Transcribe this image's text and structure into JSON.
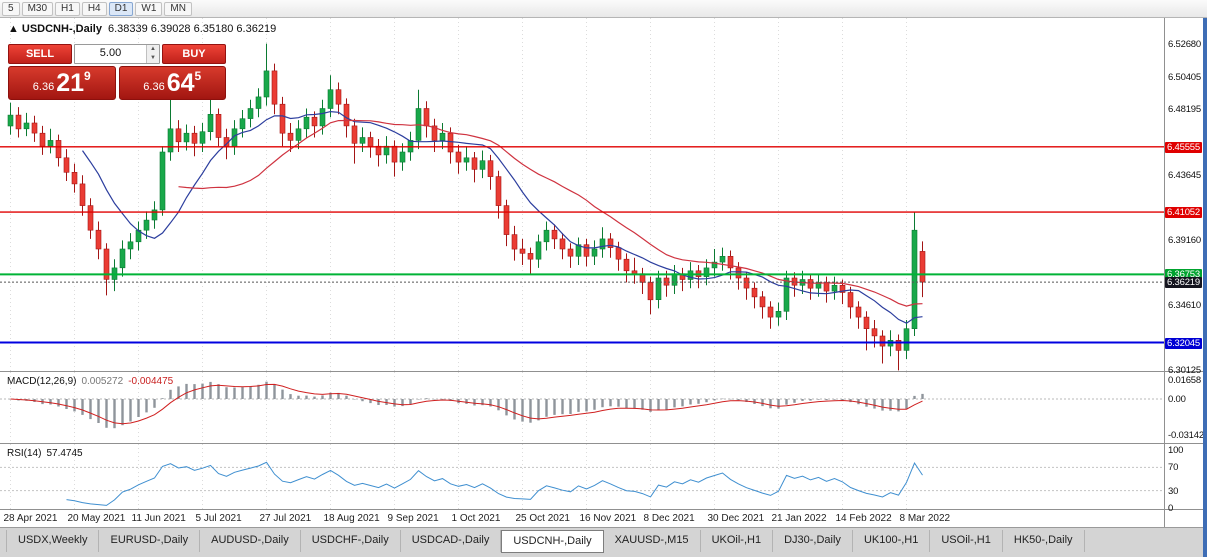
{
  "toolbar": {
    "timeframes": [
      {
        "label": "5"
      },
      {
        "label": "M30"
      },
      {
        "label": "H1"
      },
      {
        "label": "H4"
      },
      {
        "label": "D1",
        "active": true
      },
      {
        "label": "W1"
      },
      {
        "label": "MN"
      }
    ]
  },
  "chart_header": {
    "marker": "▲",
    "symbol": "USDCNH-,Daily",
    "ohlc": "6.38339 6.39028 6.35180 6.36219"
  },
  "trade_panel": {
    "sell_label": "SELL",
    "buy_label": "BUY",
    "volume": "5.00",
    "sell_price": {
      "prefix": "6.36",
      "big": "21",
      "sup": "9"
    },
    "buy_price": {
      "prefix": "6.36",
      "big": "64",
      "sup": "5"
    }
  },
  "macd": {
    "name": "MACD(12,26,9)",
    "value": "0.005272",
    "signal_value": "-0.004475",
    "axis_labels": [
      {
        "text": "0.01658",
        "value": 0.01658
      },
      {
        "text": "0.00",
        "value": 0
      },
      {
        "text": "-0.03142",
        "value": -0.03142
      }
    ]
  },
  "rsi": {
    "name": "RSI(14)",
    "value": "57.4745",
    "axis_labels": [
      {
        "text": "100",
        "value": 100
      },
      {
        "text": "70",
        "value": 70
      },
      {
        "text": "30",
        "value": 30
      },
      {
        "text": "0",
        "value": 0
      }
    ],
    "guide_levels": [
      70,
      30
    ]
  },
  "tabs": [
    {
      "label": "USDX,Weekly"
    },
    {
      "label": "EURUSD-,Daily"
    },
    {
      "label": "AUDUSD-,Daily"
    },
    {
      "label": "USDCHF-,Daily"
    },
    {
      "label": "USDCAD-,Daily"
    },
    {
      "label": "USDCNH-,Daily",
      "active": true
    },
    {
      "label": "XAUUSD-,M15"
    },
    {
      "label": "UKOil-,H1"
    },
    {
      "label": "DJ30-,Daily"
    },
    {
      "label": "UK100-,H1"
    },
    {
      "label": "USOil-,H1"
    },
    {
      "label": "HK50-,Daily"
    }
  ],
  "chart_data": {
    "type": "candlestick",
    "symbol": "USDCNH",
    "timeframe": "Daily",
    "y_range": {
      "min": 6.3015,
      "max": 6.5445
    },
    "price_axis_labels": [
      {
        "text": "6.52680",
        "value": 6.5268
      },
      {
        "text": "6.50405",
        "value": 6.50405
      },
      {
        "text": "6.48195",
        "value": 6.48195
      },
      {
        "text": "6.45555",
        "value": 6.45555,
        "badge": "#e00000"
      },
      {
        "text": "6.43645",
        "value": 6.43645
      },
      {
        "text": "6.41052",
        "value": 6.41052,
        "badge": "#e00000"
      },
      {
        "text": "6.39160",
        "value": 6.3916
      },
      {
        "text": "6.36753",
        "value": 6.36753,
        "badge": "#00a32e"
      },
      {
        "text": "6.36219",
        "value": 6.36219,
        "badge": "#15151f"
      },
      {
        "text": "6.34610",
        "value": 6.3461
      },
      {
        "text": "6.32045",
        "value": 6.32045,
        "badge": "#0000d4"
      },
      {
        "text": "6.30125",
        "value": 6.30125
      }
    ],
    "horizontal_levels": [
      {
        "value": 6.45555,
        "color": "#e00000",
        "width": 1.4,
        "dash": null
      },
      {
        "value": 6.41052,
        "color": "#e00000",
        "width": 1.4,
        "dash": null
      },
      {
        "value": 6.36753,
        "color": "#00b336",
        "width": 2,
        "dash": null
      },
      {
        "value": 6.32045,
        "color": "#0000e0",
        "width": 2,
        "dash": null
      },
      {
        "value": 6.36219,
        "color": "#555555",
        "width": 1,
        "dash": "2,2"
      }
    ],
    "x_axis_dates": [
      "28 Apr 2021",
      "20 May 2021",
      "11 Jun 2021",
      "5 Jul 2021",
      "27 Jul 2021",
      "18 Aug 2021",
      "9 Sep 2021",
      "1 Oct 2021",
      "25 Oct 2021",
      "16 Nov 2021",
      "8 Dec 2021",
      "30 Dec 2021",
      "21 Jan 2022",
      "14 Feb 2022",
      "8 Mar 2022"
    ],
    "candles_per_label": 8,
    "colors": {
      "up_fill": "#19a84a",
      "up_stroke": "#0b7a32",
      "down_fill": "#ea3c34",
      "down_stroke": "#a31515",
      "ma_fast": "#2c3e9e",
      "ma_slow": "#cf3340",
      "macd_hist": "#8f959b",
      "macd_signal": "#d02020",
      "rsi_line": "#3f8fd0",
      "grid": "#dcdcdc"
    },
    "candles": [
      [
        6.47,
        6.486,
        6.464,
        6.4775
      ],
      [
        6.4775,
        6.483,
        6.462,
        6.468
      ],
      [
        6.468,
        6.479,
        6.463,
        6.472
      ],
      [
        6.472,
        6.477,
        6.459,
        6.465
      ],
      [
        6.465,
        6.47,
        6.45,
        6.456
      ],
      [
        6.456,
        6.468,
        6.451,
        6.46
      ],
      [
        6.46,
        6.464,
        6.442,
        6.448
      ],
      [
        6.448,
        6.454,
        6.432,
        6.438
      ],
      [
        6.438,
        6.444,
        6.424,
        6.43
      ],
      [
        6.43,
        6.436,
        6.408,
        6.415
      ],
      [
        6.415,
        6.42,
        6.392,
        6.398
      ],
      [
        6.398,
        6.404,
        6.378,
        6.385
      ],
      [
        6.385,
        6.389,
        6.353,
        6.364
      ],
      [
        6.364,
        6.378,
        6.356,
        6.372
      ],
      [
        6.372,
        6.391,
        6.366,
        6.385
      ],
      [
        6.385,
        6.396,
        6.378,
        6.39
      ],
      [
        6.39,
        6.404,
        6.384,
        6.398
      ],
      [
        6.398,
        6.411,
        6.392,
        6.405
      ],
      [
        6.405,
        6.418,
        6.399,
        6.412
      ],
      [
        6.412,
        6.456,
        6.408,
        6.452
      ],
      [
        6.452,
        6.49,
        6.446,
        6.468
      ],
      [
        6.468,
        6.474,
        6.452,
        6.459
      ],
      [
        6.459,
        6.471,
        6.453,
        6.465
      ],
      [
        6.465,
        6.47,
        6.449,
        6.458
      ],
      [
        6.458,
        6.472,
        6.452,
        6.466
      ],
      [
        6.466,
        6.492,
        6.46,
        6.478
      ],
      [
        6.478,
        6.482,
        6.456,
        6.462
      ],
      [
        6.462,
        6.468,
        6.447,
        6.456
      ],
      [
        6.456,
        6.474,
        6.45,
        6.468
      ],
      [
        6.468,
        6.481,
        6.462,
        6.475
      ],
      [
        6.475,
        6.488,
        6.469,
        6.482
      ],
      [
        6.482,
        6.496,
        6.476,
        6.49
      ],
      [
        6.49,
        6.5268,
        6.484,
        6.508
      ],
      [
        6.508,
        6.513,
        6.478,
        6.485
      ],
      [
        6.485,
        6.49,
        6.456,
        6.465
      ],
      [
        6.465,
        6.472,
        6.452,
        6.46
      ],
      [
        6.46,
        6.474,
        6.454,
        6.468
      ],
      [
        6.468,
        6.482,
        6.462,
        6.476
      ],
      [
        6.476,
        6.48,
        6.462,
        6.47
      ],
      [
        6.47,
        6.488,
        6.464,
        6.482
      ],
      [
        6.482,
        6.505,
        6.476,
        6.495
      ],
      [
        6.495,
        6.5,
        6.478,
        6.485
      ],
      [
        6.485,
        6.489,
        6.462,
        6.47
      ],
      [
        6.47,
        6.475,
        6.444,
        6.458
      ],
      [
        6.458,
        6.469,
        6.452,
        6.462
      ],
      [
        6.462,
        6.466,
        6.448,
        6.456
      ],
      [
        6.456,
        6.461,
        6.442,
        6.45
      ],
      [
        6.45,
        6.463,
        6.444,
        6.456
      ],
      [
        6.456,
        6.46,
        6.435,
        6.445
      ],
      [
        6.445,
        6.458,
        6.439,
        6.452
      ],
      [
        6.452,
        6.466,
        6.446,
        6.46
      ],
      [
        6.46,
        6.495,
        6.454,
        6.482
      ],
      [
        6.482,
        6.487,
        6.462,
        6.47
      ],
      [
        6.47,
        6.475,
        6.452,
        6.46
      ],
      [
        6.46,
        6.472,
        6.454,
        6.465
      ],
      [
        6.465,
        6.469,
        6.444,
        6.452
      ],
      [
        6.452,
        6.457,
        6.437,
        6.445
      ],
      [
        6.445,
        6.456,
        6.439,
        6.448
      ],
      [
        6.448,
        6.452,
        6.431,
        6.44
      ],
      [
        6.44,
        6.453,
        6.434,
        6.446
      ],
      [
        6.446,
        6.45,
        6.426,
        6.435
      ],
      [
        6.435,
        6.439,
        6.406,
        6.415
      ],
      [
        6.415,
        6.419,
        6.387,
        6.395
      ],
      [
        6.395,
        6.401,
        6.377,
        6.385
      ],
      [
        6.385,
        6.392,
        6.374,
        6.382
      ],
      [
        6.382,
        6.386,
        6.368,
        6.378
      ],
      [
        6.378,
        6.395,
        6.372,
        6.39
      ],
      [
        6.39,
        6.404,
        6.384,
        6.398
      ],
      [
        6.398,
        6.402,
        6.385,
        6.392
      ],
      [
        6.392,
        6.396,
        6.378,
        6.385
      ],
      [
        6.385,
        6.389,
        6.372,
        6.38
      ],
      [
        6.38,
        6.393,
        6.374,
        6.388
      ],
      [
        6.388,
        6.392,
        6.373,
        6.38
      ],
      [
        6.38,
        6.391,
        6.374,
        6.385
      ],
      [
        6.385,
        6.4,
        6.379,
        6.392
      ],
      [
        6.392,
        6.396,
        6.379,
        6.386
      ],
      [
        6.386,
        6.39,
        6.37,
        6.378
      ],
      [
        6.378,
        6.382,
        6.362,
        6.37
      ],
      [
        6.37,
        6.379,
        6.361,
        6.368
      ],
      [
        6.368,
        6.372,
        6.354,
        6.362
      ],
      [
        6.362,
        6.366,
        6.34,
        6.35
      ],
      [
        6.35,
        6.37,
        6.344,
        6.365
      ],
      [
        6.365,
        6.37,
        6.352,
        6.36
      ],
      [
        6.36,
        6.374,
        6.354,
        6.368
      ],
      [
        6.368,
        6.372,
        6.356,
        6.364
      ],
      [
        6.364,
        6.376,
        6.358,
        6.37
      ],
      [
        6.37,
        6.374,
        6.358,
        6.366
      ],
      [
        6.366,
        6.378,
        6.36,
        6.372
      ],
      [
        6.372,
        6.385,
        6.366,
        6.376
      ],
      [
        6.376,
        6.386,
        6.37,
        6.38
      ],
      [
        6.38,
        6.384,
        6.364,
        6.372
      ],
      [
        6.372,
        6.376,
        6.357,
        6.365
      ],
      [
        6.365,
        6.369,
        6.35,
        6.358
      ],
      [
        6.358,
        6.362,
        6.344,
        6.352
      ],
      [
        6.352,
        6.356,
        6.337,
        6.345
      ],
      [
        6.345,
        6.349,
        6.33,
        6.338
      ],
      [
        6.338,
        6.348,
        6.332,
        6.342
      ],
      [
        6.342,
        6.37,
        6.336,
        6.365
      ],
      [
        6.365,
        6.369,
        6.352,
        6.36
      ],
      [
        6.36,
        6.37,
        6.354,
        6.364
      ],
      [
        6.364,
        6.368,
        6.35,
        6.358
      ],
      [
        6.358,
        6.368,
        6.352,
        6.362
      ],
      [
        6.362,
        6.366,
        6.348,
        6.356
      ],
      [
        6.356,
        6.366,
        6.35,
        6.36
      ],
      [
        6.36,
        6.364,
        6.347,
        6.355
      ],
      [
        6.355,
        6.359,
        6.337,
        6.345
      ],
      [
        6.345,
        6.349,
        6.33,
        6.338
      ],
      [
        6.338,
        6.342,
        6.315,
        6.33
      ],
      [
        6.33,
        6.336,
        6.317,
        6.325
      ],
      [
        6.325,
        6.329,
        6.306,
        6.318
      ],
      [
        6.318,
        6.329,
        6.311,
        6.322
      ],
      [
        6.322,
        6.326,
        6.3012,
        6.315
      ],
      [
        6.315,
        6.336,
        6.309,
        6.33
      ],
      [
        6.33,
        6.4105,
        6.325,
        6.398
      ],
      [
        6.38339,
        6.39028,
        6.3518,
        6.36219
      ]
    ]
  }
}
